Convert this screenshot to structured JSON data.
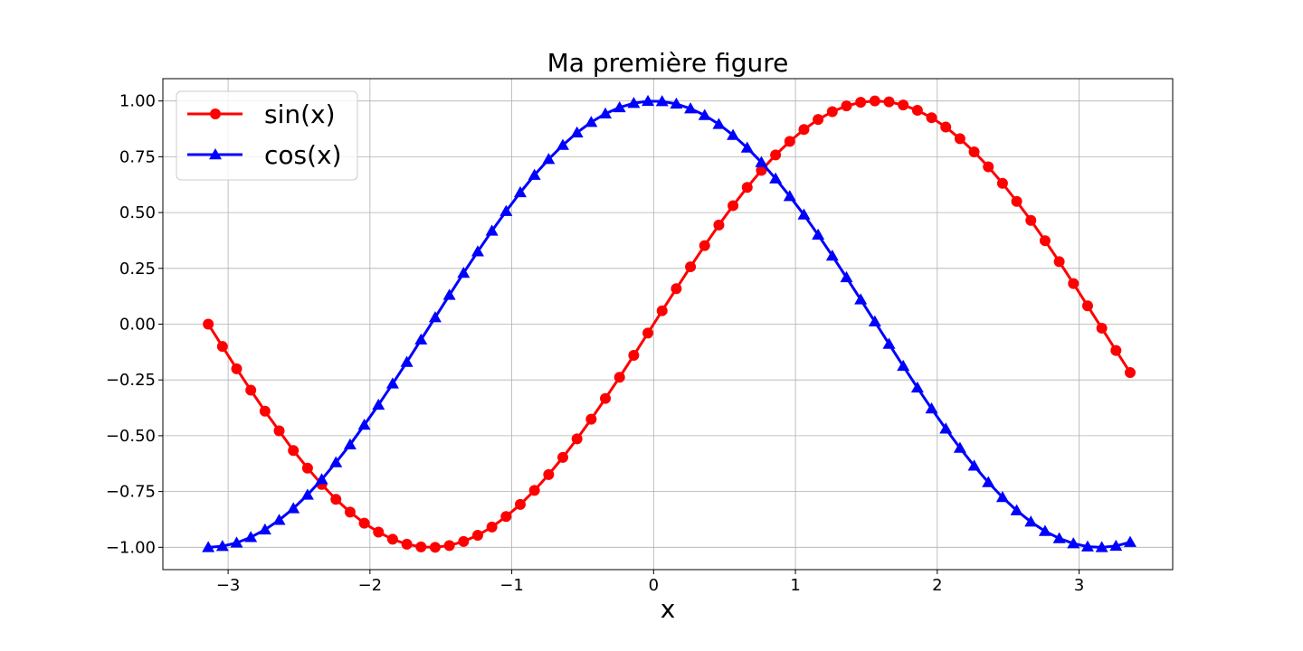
{
  "chart_data": {
    "type": "line",
    "title": "Ma première figure",
    "xlabel": "x",
    "ylabel": "",
    "xlim": [
      -3.46,
      3.66
    ],
    "ylim": [
      -1.1,
      1.1
    ],
    "grid": true,
    "legend_position": "top-left",
    "x_ticks": [
      -3,
      -2,
      -1,
      0,
      1,
      2,
      3
    ],
    "x_tick_labels": [
      "−3",
      "−2",
      "−1",
      "0",
      "1",
      "2",
      "3"
    ],
    "y_ticks": [
      -1.0,
      -0.75,
      -0.5,
      -0.25,
      0.0,
      0.25,
      0.5,
      0.75,
      1.0
    ],
    "y_tick_labels": [
      "−1.00",
      "−0.75",
      "−0.50",
      "−0.25",
      "0.00",
      "0.25",
      "0.50",
      "0.75",
      "1.00"
    ],
    "x": [
      -3.14,
      -3.04,
      -2.94,
      -2.84,
      -2.74,
      -2.64,
      -2.54,
      -2.44,
      -2.34,
      -2.24,
      -2.14,
      -2.04,
      -1.94,
      -1.84,
      -1.74,
      -1.64,
      -1.54,
      -1.44,
      -1.34,
      -1.24,
      -1.14,
      -1.04,
      -0.94,
      -0.84,
      -0.74,
      -0.64,
      -0.54,
      -0.44,
      -0.34,
      -0.24,
      -0.14,
      -0.04,
      0.06,
      0.16,
      0.26,
      0.36,
      0.46,
      0.56,
      0.66,
      0.76,
      0.86,
      0.96,
      1.06,
      1.16,
      1.26,
      1.36,
      1.46,
      1.56,
      1.66,
      1.76,
      1.86,
      1.96,
      2.06,
      2.16,
      2.26,
      2.36,
      2.46,
      2.56,
      2.66,
      2.76,
      2.86,
      2.96,
      3.06,
      3.16,
      3.26,
      3.36
    ],
    "series": [
      {
        "name": "sin(x)",
        "color": "#ff0000",
        "marker": "circle",
        "values": [
          0.0,
          -0.1,
          -0.2,
          -0.296,
          -0.39,
          -0.478,
          -0.566,
          -0.645,
          -0.718,
          -0.785,
          -0.842,
          -0.892,
          -0.932,
          -0.964,
          -0.986,
          -0.998,
          -1.0,
          -0.992,
          -0.974,
          -0.946,
          -0.909,
          -0.862,
          -0.808,
          -0.745,
          -0.674,
          -0.597,
          -0.514,
          -0.426,
          -0.333,
          -0.238,
          -0.14,
          -0.04,
          0.06,
          0.159,
          0.257,
          0.352,
          0.444,
          0.531,
          0.613,
          0.689,
          0.758,
          0.819,
          0.872,
          0.917,
          0.952,
          0.978,
          0.994,
          1.0,
          0.996,
          0.982,
          0.958,
          0.925,
          0.883,
          0.831,
          0.772,
          0.705,
          0.631,
          0.55,
          0.465,
          0.374,
          0.28,
          0.182,
          0.082,
          -0.018,
          -0.118,
          -0.217
        ]
      },
      {
        "name": "cos(x)",
        "color": "#0000ff",
        "marker": "triangle",
        "values": [
          -1.0,
          -0.995,
          -0.98,
          -0.955,
          -0.921,
          -0.878,
          -0.826,
          -0.765,
          -0.696,
          -0.62,
          -0.54,
          -0.452,
          -0.362,
          -0.267,
          -0.17,
          -0.07,
          0.03,
          0.13,
          0.229,
          0.325,
          0.418,
          0.506,
          0.59,
          0.668,
          0.739,
          0.802,
          0.858,
          0.905,
          0.943,
          0.971,
          0.99,
          0.999,
          0.998,
          0.987,
          0.966,
          0.936,
          0.896,
          0.847,
          0.79,
          0.725,
          0.652,
          0.573,
          0.49,
          0.4,
          0.306,
          0.209,
          0.11,
          0.011,
          -0.089,
          -0.188,
          -0.285,
          -0.379,
          -0.469,
          -0.555,
          -0.635,
          -0.709,
          -0.776,
          -0.835,
          -0.886,
          -0.928,
          -0.96,
          -0.983,
          -0.997,
          -1.0,
          -0.994,
          -0.977
        ]
      }
    ]
  }
}
